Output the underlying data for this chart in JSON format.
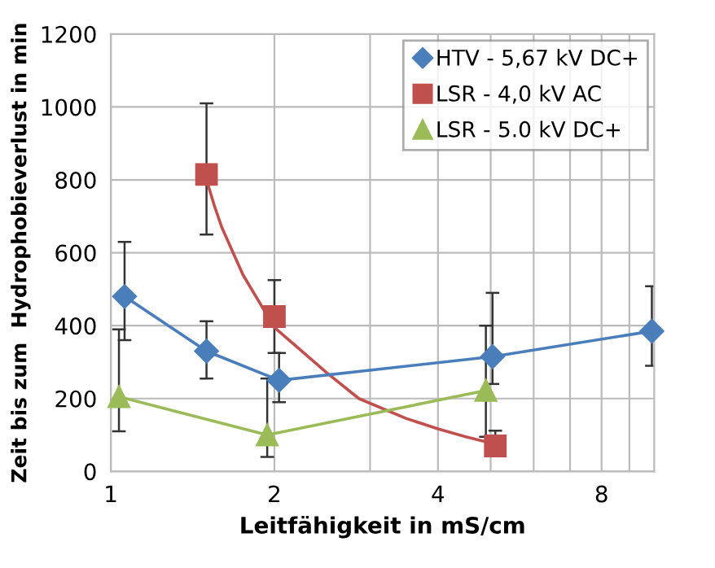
{
  "chart_data": {
    "type": "scatter",
    "xlabel": "Leitfähigkeit in mS/cm",
    "ylabel": "Zeit bis zum  Hydrophobieverlust in min",
    "log": "x",
    "xlim": [
      1,
      10
    ],
    "xticks": [
      1,
      2,
      {
        "value": 3,
        "label": null
      },
      4,
      {
        "value": 5,
        "label": null
      },
      {
        "value": 6,
        "label": null
      },
      {
        "value": 7,
        "label": null
      },
      8,
      {
        "value": 9,
        "label": null
      }
    ],
    "ylim": [
      0,
      1200
    ],
    "yticks": [
      0,
      200,
      400,
      600,
      800,
      1000,
      1200
    ],
    "grid": true,
    "legend": "top right",
    "series": [
      {
        "name": "HTV - 5,67 kV DC+",
        "type": "line",
        "marker": "diamond",
        "color": "#4a7ebb",
        "x": [
          1.06,
          1.5,
          2.04,
          5.04,
          9.9
        ],
        "values": [
          480,
          330,
          250,
          315,
          385
        ],
        "errors": [
          [
            360,
            630
          ],
          [
            255,
            412
          ],
          [
            190,
            325
          ],
          [
            240,
            490
          ],
          [
            290,
            508
          ]
        ]
      },
      {
        "name": "LSR - 4,0 kV AC",
        "marker": "square",
        "color": "#c0504d",
        "x": [
          1.5,
          2.0,
          5.1
        ],
        "values": [
          815,
          425,
          70
        ],
        "errors": [
          [
            650,
            1010
          ],
          [
            325,
            525
          ],
          [
            45,
            112
          ]
        ]
      },
      {
        "name": "LSR - 5.0 kV DC+",
        "type": "line",
        "marker": "triangle",
        "color": "#9bbb59",
        "x": [
          1.035,
          1.94,
          4.9
        ],
        "values": [
          205,
          100,
          222
        ],
        "errors": [
          [
            110,
            390
          ],
          [
            40,
            255
          ],
          [
            95,
            400
          ]
        ]
      },
      {
        "type": "line",
        "marker": "none",
        "color": "#c0504d",
        "x": [
          1.5,
          1.55,
          1.6,
          1.75,
          2.0,
          2.5,
          2.86,
          3.5,
          4.0,
          4.5,
          5.1
        ],
        "values": [
          800,
          730,
          670,
          540,
          395,
          270,
          200,
          145,
          117,
          95,
          75
        ]
      }
    ]
  }
}
